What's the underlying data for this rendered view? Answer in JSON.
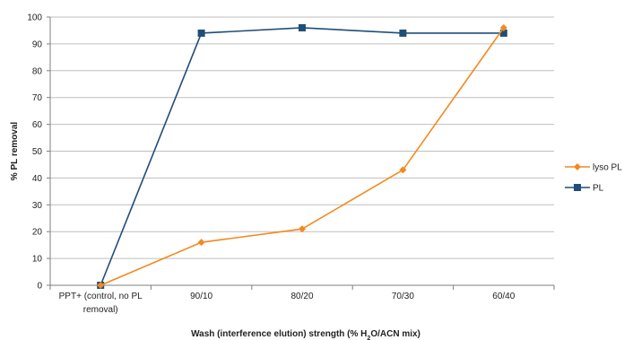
{
  "colors": {
    "lyso_pl": "#f28a1e",
    "pl": "#1f4e79",
    "grid": "#bfbfbf",
    "axis": "#7f7f7f"
  },
  "chart_data": {
    "type": "line",
    "title": "",
    "xlabel": "Wash (interference elution) strength (% H₂O/ACN mix)",
    "xlabel_parts": {
      "before": "Wash (interference elution) strength (% H",
      "sub": "2",
      "after": "O/ACN mix)"
    },
    "ylabel": "% PL removal",
    "categories": [
      [
        "PPT+ (control, no PL",
        "removal)"
      ],
      [
        "90/10"
      ],
      [
        "80/20"
      ],
      [
        "70/30"
      ],
      [
        "60/40"
      ]
    ],
    "ylim": [
      0,
      100
    ],
    "yticks": [
      0,
      10,
      20,
      30,
      40,
      50,
      60,
      70,
      80,
      90,
      100
    ],
    "grid": true,
    "legend_position": "right",
    "series": [
      {
        "name": "lyso PL",
        "marker": "diamond",
        "values": [
          0,
          16,
          21,
          43,
          96
        ]
      },
      {
        "name": "PL",
        "marker": "square",
        "values": [
          0,
          94,
          96,
          94,
          94
        ]
      }
    ]
  }
}
